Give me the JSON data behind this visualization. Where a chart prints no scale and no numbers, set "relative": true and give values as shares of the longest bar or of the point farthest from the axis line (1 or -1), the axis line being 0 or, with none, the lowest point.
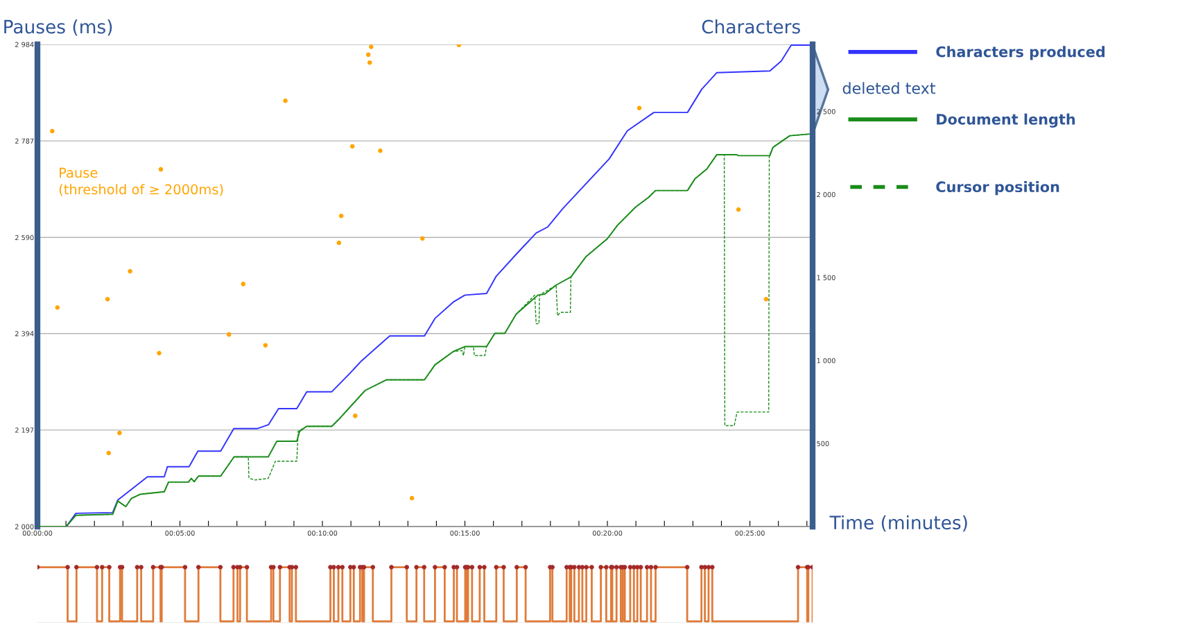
{
  "chart_data": [
    {
      "type": "line",
      "ylabel": "Pauses (ms)",
      "y2label": "Characters",
      "xlabel": "Time (minutes)",
      "annotations": [
        "deleted text"
      ],
      "xlim": [
        0,
        27.2
      ],
      "xticks": [
        {
          "value": 0,
          "label": "00:00:00"
        },
        {
          "value": 1,
          "label": null
        },
        {
          "value": 2,
          "label": null
        },
        {
          "value": 3,
          "label": null
        },
        {
          "value": 4,
          "label": null
        },
        {
          "value": 5,
          "label": "00:05:00"
        },
        {
          "value": 6,
          "label": null
        },
        {
          "value": 7,
          "label": null
        },
        {
          "value": 8,
          "label": null
        },
        {
          "value": 9,
          "label": null
        },
        {
          "value": 10,
          "label": "00:10:00"
        },
        {
          "value": 11,
          "label": null
        },
        {
          "value": 12,
          "label": null
        },
        {
          "value": 13,
          "label": null
        },
        {
          "value": 14,
          "label": null
        },
        {
          "value": 15,
          "label": "00:15:00"
        },
        {
          "value": 16,
          "label": null
        },
        {
          "value": 17,
          "label": null
        },
        {
          "value": 18,
          "label": null
        },
        {
          "value": 19,
          "label": null
        },
        {
          "value": 20,
          "label": "00:20:00"
        },
        {
          "value": 21,
          "label": null
        },
        {
          "value": 22,
          "label": null
        },
        {
          "value": 23,
          "label": null
        },
        {
          "value": 24,
          "label": null
        },
        {
          "value": 25,
          "label": "00:25:00"
        },
        {
          "value": 26,
          "label": null
        },
        {
          "value": 27,
          "label": null
        }
      ],
      "ylim": [
        2000,
        2984
      ],
      "yticks": [
        {
          "value": 2000,
          "label": "2 000"
        },
        {
          "value": 2197,
          "label": "2 197"
        },
        {
          "value": 2394,
          "label": "2 394"
        },
        {
          "value": 2590,
          "label": "2 590"
        },
        {
          "value": 2787,
          "label": "2 787"
        },
        {
          "value": 2984,
          "label": "2 984"
        }
      ],
      "y2lim": [
        0,
        2904
      ],
      "y2ticks": [
        500,
        {
          "value": 1000,
          "label": "1 000"
        },
        {
          "value": 1500,
          "label": "1 500"
        },
        {
          "value": 2000,
          "label": "2 000"
        },
        {
          "value": 2500,
          "label": "2 500"
        }
      ],
      "grid": "y",
      "legend": "right",
      "marker": "none",
      "series": [
        {
          "type": "scatter",
          "name": "Pause\n(threshold of ≥ 2000ms)",
          "color": "#ffa500",
          "marker": "circle",
          "x": [
            0.52,
            0.7,
            4.33,
            4.27,
            3.25,
            2.46,
            2.88,
            2.5,
            6.72,
            7.22,
            8.0,
            8.7,
            10.66,
            10.58,
            11.05,
            12.03,
            11.61,
            11.66,
            11.71,
            11.15,
            13.14,
            14.79,
            13.51,
            21.12,
            24.6,
            25.57
          ],
          "values": [
            2807,
            2447,
            2729,
            2354,
            2521,
            2464,
            2191,
            2150,
            2392,
            2495,
            2370,
            2869,
            2634,
            2579,
            2776,
            2767,
            2963,
            2947,
            2979,
            2226,
            2058,
            2983,
            2588,
            2854,
            2647,
            2464
          ]
        },
        {
          "name": "Characters produced",
          "color": "#3333ff",
          "axis": "y2",
          "line_style": "solid",
          "x": [
            0,
            1.01,
            1.35,
            2.64,
            2.82,
            3.52,
            3.86,
            4.45,
            4.56,
            5.32,
            5.63,
            6.43,
            6.89,
            7.71,
            8.11,
            8.46,
            9.1,
            9.45,
            10.33,
            10.97,
            11.37,
            12.36,
            13.58,
            13.95,
            14.59,
            15.0,
            15.76,
            16.1,
            16.8,
            17.5,
            17.9,
            18.43,
            19.19,
            20.06,
            20.7,
            21.63,
            22.81,
            23.31,
            23.84,
            25.7,
            26.1,
            26.45,
            27.1
          ],
          "values": [
            0,
            0,
            80,
            84,
            160,
            254,
            300,
            300,
            360,
            360,
            454,
            454,
            590,
            590,
            614,
            710,
            710,
            812,
            812,
            924,
            998,
            1148,
            1148,
            1254,
            1352,
            1394,
            1404,
            1508,
            1640,
            1768,
            1804,
            1914,
            2054,
            2214,
            2384,
            2494,
            2494,
            2634,
            2734,
            2744,
            2804,
            2900,
            2900
          ]
        },
        {
          "name": "Document length",
          "color": "#1a8c1a",
          "axis": "y2",
          "line_style": "solid",
          "x": [
            0,
            1.01,
            1.35,
            2.64,
            2.82,
            3.1,
            3.3,
            3.6,
            4.45,
            4.6,
            5.3,
            5.4,
            5.5,
            5.65,
            6.43,
            6.9,
            7.4,
            8.1,
            8.4,
            9.1,
            9.2,
            9.45,
            10.33,
            10.6,
            11.0,
            11.5,
            12.25,
            13.58,
            13.95,
            14.59,
            15.0,
            15.76,
            16.05,
            16.4,
            16.8,
            17.56,
            17.8,
            18.2,
            18.72,
            19.24,
            20.0,
            20.35,
            20.99,
            21.45,
            21.69,
            22.81,
            23.07,
            23.49,
            23.84,
            24.53,
            24.6,
            25.7,
            25.81,
            26.4,
            27.1
          ],
          "values": [
            0,
            0,
            68,
            74,
            154,
            120,
            170,
            194,
            210,
            268,
            268,
            290,
            270,
            304,
            304,
            420,
            420,
            420,
            514,
            514,
            574,
            604,
            604,
            650,
            726,
            820,
            884,
            884,
            974,
            1054,
            1084,
            1084,
            1164,
            1164,
            1280,
            1394,
            1400,
            1454,
            1504,
            1624,
            1734,
            1814,
            1924,
            1984,
            2024,
            2024,
            2094,
            2154,
            2240,
            2240,
            2234,
            2234,
            2284,
            2354,
            2364
          ]
        },
        {
          "name": "Cursor position",
          "color": "#1a8c1a",
          "axis": "y2",
          "line_style": "dashed",
          "x": [
            0,
            1.01,
            1.35,
            2.64,
            2.82,
            3.1,
            3.3,
            3.6,
            4.45,
            4.6,
            5.3,
            5.4,
            5.5,
            5.65,
            6.43,
            6.9,
            7.4,
            7.42,
            7.6,
            8.1,
            8.35,
            9.1,
            9.15,
            9.45,
            10.33,
            10.6,
            11.0,
            11.5,
            12.25,
            13.58,
            13.95,
            14.59,
            14.9,
            14.95,
            15.0,
            15.3,
            15.33,
            15.7,
            15.76,
            16.05,
            16.4,
            16.8,
            17.45,
            17.5,
            17.6,
            17.62,
            18.2,
            18.25,
            18.35,
            18.7,
            18.72,
            19.24,
            20.0,
            20.35,
            20.99,
            21.45,
            21.69,
            22.81,
            23.07,
            23.49,
            23.84,
            24.1,
            24.12,
            24.45,
            24.55,
            25.66,
            25.68,
            25.81,
            26.4,
            27.1
          ],
          "values": [
            0,
            0,
            68,
            74,
            154,
            120,
            170,
            194,
            210,
            268,
            268,
            290,
            270,
            304,
            304,
            420,
            420,
            294,
            280,
            290,
            394,
            394,
            574,
            604,
            604,
            650,
            726,
            820,
            884,
            884,
            974,
            1054,
            1060,
            1030,
            1084,
            1084,
            1030,
            1030,
            1084,
            1164,
            1164,
            1280,
            1394,
            1222,
            1222,
            1394,
            1454,
            1270,
            1290,
            1290,
            1504,
            1624,
            1734,
            1814,
            1924,
            1984,
            2024,
            2024,
            2094,
            2154,
            2240,
            2240,
            608,
            608,
            690,
            690,
            2234,
            2284,
            2354,
            2364
          ]
        }
      ]
    },
    {
      "type": "step",
      "relative": true,
      "xlim": [
        0,
        27.2
      ],
      "tick_labels": false,
      "grid": false,
      "series": [
        {
          "color": "#e07b39",
          "marker": "none",
          "x": [
            0,
            1.06,
            1.37,
            2.09,
            2.27,
            2.52,
            2.9,
            2.97,
            3.5,
            3.64,
            4.06,
            4.32,
            4.36,
            5.18,
            5.65,
            6.42,
            6.88,
            7.02,
            7.11,
            7.35,
            8.2,
            8.28,
            8.51,
            8.85,
            8.93,
            9.07,
            10.28,
            10.4,
            10.56,
            10.7,
            10.98,
            11.1,
            11.32,
            11.4,
            11.46,
            11.77,
            12.42,
            12.96,
            13.3,
            13.57,
            13.95,
            14.29,
            14.61,
            14.72,
            15.01,
            15.06,
            15.11,
            15.25,
            15.52,
            15.68,
            16.1,
            16.36,
            16.82,
            17.13,
            17.99,
            18.07,
            18.57,
            18.68,
            18.73,
            18.84,
            19.0,
            19.12,
            19.26,
            19.45,
            19.77,
            19.96,
            20.13,
            20.17,
            20.32,
            20.47,
            20.54,
            20.61,
            20.8,
            20.93,
            21.05,
            21.17,
            21.39,
            21.53,
            21.69,
            22.8,
            23.3,
            23.42,
            23.55,
            23.68,
            26.69,
            27.01,
            27.05,
            27.2
          ],
          "values": [
            1,
            0,
            1,
            0,
            1,
            0,
            1,
            0,
            1,
            0,
            1,
            0,
            1,
            0,
            1,
            0,
            1,
            0,
            1,
            0,
            1,
            0,
            1,
            0,
            1,
            0,
            1,
            0,
            1,
            0,
            1,
            0,
            1,
            0,
            1,
            0,
            1,
            0,
            1,
            0,
            1,
            0,
            1,
            0,
            1,
            0,
            1,
            0,
            1,
            0,
            1,
            0,
            1,
            0,
            1,
            0,
            1,
            0,
            1,
            0,
            1,
            0,
            1,
            0,
            1,
            0,
            1,
            0,
            1,
            0,
            1,
            0,
            1,
            0,
            1,
            0,
            1,
            0,
            1,
            0,
            1,
            0,
            1,
            0,
            1,
            0,
            1,
            0
          ]
        },
        {
          "type": "scatter",
          "color": "#a52a2a",
          "marker": "circle",
          "x": [
            0,
            1.06,
            1.37,
            2.09,
            2.27,
            2.52,
            2.9,
            2.97,
            3.5,
            3.64,
            4.06,
            4.32,
            4.36,
            5.18,
            5.65,
            6.42,
            6.88,
            7.02,
            7.11,
            7.35,
            8.2,
            8.28,
            8.51,
            8.85,
            8.93,
            9.07,
            10.28,
            10.4,
            10.56,
            10.7,
            10.98,
            11.1,
            11.32,
            11.4,
            11.46,
            11.77,
            12.42,
            12.96,
            13.3,
            13.57,
            13.95,
            14.29,
            14.61,
            14.72,
            15.01,
            15.06,
            15.11,
            15.25,
            15.52,
            15.68,
            16.1,
            16.36,
            16.82,
            17.13,
            17.99,
            18.07,
            18.57,
            18.68,
            18.73,
            18.84,
            19.0,
            19.12,
            19.26,
            19.45,
            19.77,
            19.96,
            20.13,
            20.17,
            20.32,
            20.47,
            20.54,
            20.61,
            20.8,
            20.93,
            21.05,
            21.17,
            21.39,
            21.53,
            21.69,
            22.8,
            23.3,
            23.42,
            23.55,
            23.68,
            26.69,
            27.01,
            27.05,
            27.2
          ],
          "values": [
            1,
            1,
            1,
            1,
            1,
            1,
            1,
            1,
            1,
            1,
            1,
            1,
            1,
            1,
            1,
            1,
            1,
            1,
            1,
            1,
            1,
            1,
            1,
            1,
            1,
            1,
            1,
            1,
            1,
            1,
            1,
            1,
            1,
            1,
            1,
            1,
            1,
            1,
            1,
            1,
            1,
            1,
            1,
            1,
            1,
            1,
            1,
            1,
            1,
            1,
            1,
            1,
            1,
            1,
            1,
            1,
            1,
            1,
            1,
            1,
            1,
            1,
            1,
            1,
            1,
            1,
            1,
            1,
            1,
            1,
            1,
            1,
            1,
            1,
            1,
            1,
            1,
            1,
            1,
            1,
            1,
            1,
            1,
            1,
            1,
            1,
            1,
            1
          ]
        }
      ]
    }
  ]
}
